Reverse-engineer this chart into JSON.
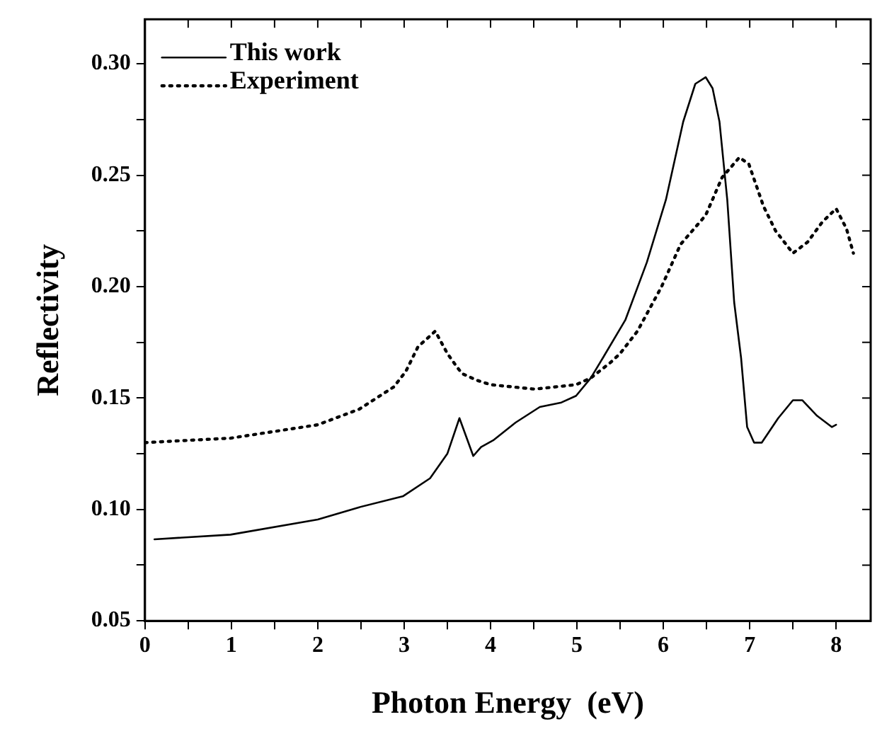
{
  "chart_data": {
    "type": "line",
    "xlabel": "Photon Energy  (eV)",
    "ylabel": "Reflectivity",
    "xlim": [
      0,
      8.4
    ],
    "ylim": [
      0.05,
      0.32
    ],
    "xticks": [
      0,
      {
        "value": 0.5,
        "label": null
      },
      1,
      {
        "value": 1.5,
        "label": null
      },
      2,
      {
        "value": 2.5,
        "label": null
      },
      3,
      {
        "value": 3.5,
        "label": null
      },
      4,
      {
        "value": 4.5,
        "label": null
      },
      5,
      {
        "value": 5.5,
        "label": null
      },
      6,
      {
        "value": 6.5,
        "label": null
      },
      7,
      {
        "value": 7.5,
        "label": null
      },
      8
    ],
    "yticks": [
      {
        "value": 0.05,
        "label": "0.05"
      },
      {
        "value": 0.075,
        "label": null
      },
      {
        "value": 0.1,
        "label": "0.10"
      },
      {
        "value": 0.125,
        "label": null
      },
      {
        "value": 0.15,
        "label": "0.15"
      },
      {
        "value": 0.175,
        "label": null
      },
      {
        "value": 0.2,
        "label": "0.20"
      },
      {
        "value": 0.225,
        "label": null
      },
      {
        "value": 0.25,
        "label": "0.25"
      },
      {
        "value": 0.275,
        "label": null
      },
      {
        "value": 0.3,
        "label": "0.30"
      }
    ],
    "grid": false,
    "legend": "top left",
    "marker": "none",
    "series": [
      {
        "name": "This work",
        "color": "#000000",
        "line_style": "solid",
        "x": [
          0.11,
          0.99,
          2.0,
          2.48,
          2.99,
          3.3,
          3.5,
          3.64,
          3.8,
          3.89,
          4.03,
          4.29,
          4.57,
          4.82,
          4.99,
          5.16,
          5.3,
          5.56,
          5.81,
          6.03,
          6.23,
          6.37,
          6.49,
          6.57,
          6.65,
          6.74,
          6.82,
          6.9,
          6.97,
          7.05,
          7.14,
          7.33,
          7.5,
          7.61,
          7.78,
          7.95,
          8.0
        ],
        "values": [
          0.0866,
          0.0887,
          0.0955,
          0.101,
          0.106,
          0.114,
          0.125,
          0.141,
          0.124,
          0.128,
          0.131,
          0.139,
          0.146,
          0.148,
          0.151,
          0.159,
          0.168,
          0.185,
          0.211,
          0.239,
          0.274,
          0.291,
          0.294,
          0.289,
          0.274,
          0.239,
          0.193,
          0.168,
          0.137,
          0.13,
          0.13,
          0.141,
          0.149,
          0.149,
          0.142,
          0.137,
          0.138
        ]
      },
      {
        "name": "Experiment",
        "color": "#000000",
        "line_style": "dotted",
        "x": [
          0,
          0.99,
          2.0,
          2.48,
          2.88,
          3.02,
          3.16,
          3.36,
          3.5,
          3.61,
          3.67,
          3.84,
          4.0,
          4.51,
          4.99,
          5.16,
          5.39,
          5.5,
          5.7,
          5.98,
          6.2,
          6.49,
          6.68,
          6.88,
          6.99,
          7.16,
          7.3,
          7.5,
          7.67,
          7.84,
          8.0,
          8.12,
          8.2
        ],
        "values": [
          0.13,
          0.132,
          0.138,
          0.145,
          0.155,
          0.162,
          0.173,
          0.18,
          0.17,
          0.164,
          0.161,
          0.158,
          0.156,
          0.154,
          0.156,
          0.159,
          0.166,
          0.17,
          0.18,
          0.2,
          0.219,
          0.232,
          0.249,
          0.258,
          0.255,
          0.236,
          0.225,
          0.215,
          0.22,
          0.229,
          0.235,
          0.226,
          0.215
        ]
      }
    ]
  }
}
